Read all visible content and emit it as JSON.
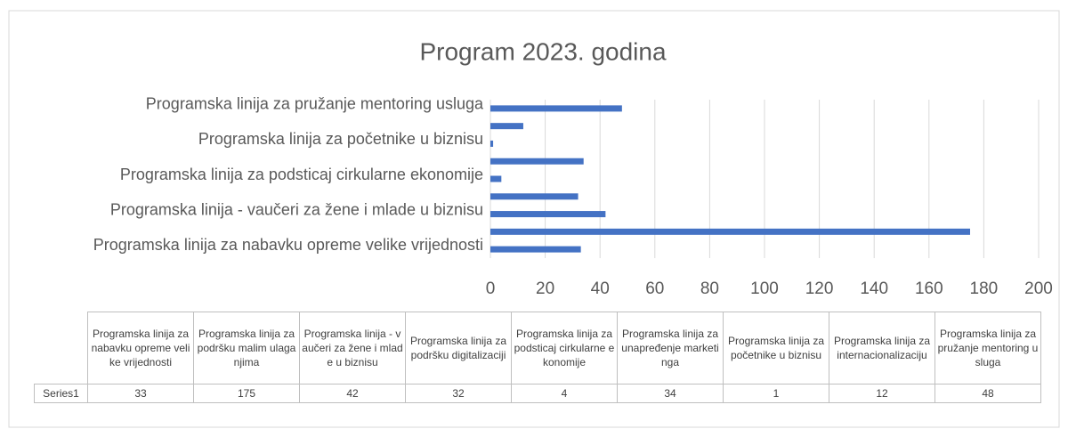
{
  "chart_data": {
    "type": "barh",
    "title": "Program 2023. godina",
    "categories": [
      "Programska linija za nabavku opreme velike vrijednosti",
      "Programska linija za podršku malim ulaganjima",
      "Programska linija - vaučeri za žene i mlade u biznisu",
      "Programska linija za podršku digitalizaciji",
      "Programska linija za podsticaj cirkularne ekonomije",
      "Programska linija za unapređenje marketinga",
      "Programska linija za početnike u biznisu",
      "Programska linija za internacionalizaciju",
      "Programska linija za pružanje mentoring usluga"
    ],
    "series": [
      {
        "name": "Series1",
        "color": "#4472c4",
        "values": [
          33,
          175,
          42,
          32,
          4,
          34,
          1,
          12,
          48
        ]
      }
    ],
    "xlim": [
      0,
      200
    ],
    "xticks": [
      0,
      20,
      40,
      60,
      80,
      100,
      120,
      140,
      160,
      180,
      200
    ],
    "grid": true,
    "data_table": true
  }
}
